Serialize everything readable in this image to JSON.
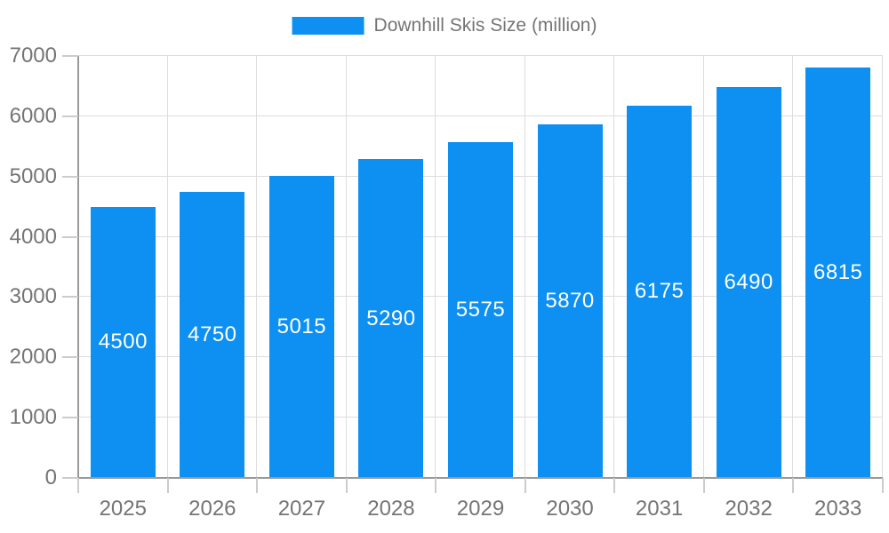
{
  "legend": {
    "label": "Downhill Skis Size (million)",
    "position": "top-center"
  },
  "colors": {
    "bar": "#0d90f2",
    "value_label": "#ffffff",
    "axis_text": "#757575",
    "legend_text": "#757575",
    "grid": "#dddddd",
    "tick": "#cccccc",
    "axis_line": "#999999",
    "background": "#ffffff"
  },
  "chart_data": {
    "type": "bar",
    "title": "Downhill Skis Size (million)",
    "categories": [
      "2025",
      "2026",
      "2027",
      "2028",
      "2029",
      "2030",
      "2031",
      "2032",
      "2033"
    ],
    "values": [
      4500,
      4750,
      5015,
      5290,
      5575,
      5870,
      6175,
      6490,
      6815
    ],
    "xlabel": "",
    "ylabel": "",
    "ylim": [
      0,
      7000
    ],
    "ytick_step": 1000,
    "ytick_labels": [
      "0",
      "1000",
      "2000",
      "3000",
      "4000",
      "5000",
      "6000",
      "7000"
    ],
    "grid": true,
    "legend_position": "top-center",
    "value_label_position": "inside-center"
  }
}
